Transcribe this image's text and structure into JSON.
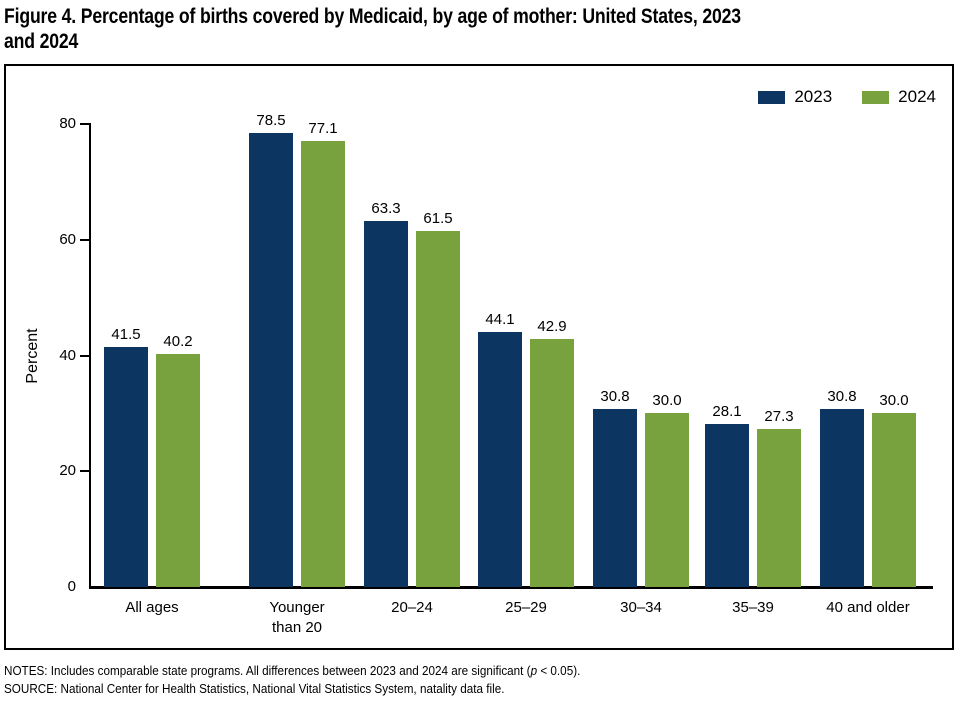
{
  "header": {
    "title_lines": [
      "Figure 4. Percentage of births covered by Medicaid, by age of mother: United States, 2023",
      "and 2024"
    ]
  },
  "chart_data": {
    "type": "bar",
    "title": "Figure 4. Percentage of births covered by Medicaid, by age of mother: United States, 2023 and 2024",
    "xlabel": "",
    "ylabel": "Percent",
    "ylim": [
      0,
      80
    ],
    "yticks": [
      0,
      20,
      40,
      60,
      80
    ],
    "grid": false,
    "legend_position": "top-right",
    "value_labels_shown": true,
    "categories": [
      "All ages",
      "Younger than 20",
      "20–24",
      "25–29",
      "30–34",
      "35–39",
      "40 and older"
    ],
    "series": [
      {
        "name": "2023",
        "color": "#0d3561",
        "values": [
          41.5,
          78.5,
          63.3,
          44.1,
          30.8,
          28.1,
          30.8
        ]
      },
      {
        "name": "2024",
        "color": "#78a23d",
        "values": [
          40.2,
          77.1,
          61.5,
          42.9,
          30.0,
          27.3,
          30.0
        ]
      }
    ],
    "axis_color": "#000000",
    "text_color": "#000000"
  },
  "footer": {
    "notes_prefix": "NOTES: Includes comparable state programs. All differences between 2023 and 2024 are significant (",
    "notes_p": "p",
    "notes_suffix": " < 0.05).",
    "source": "SOURCE: National Center for Health Statistics, National Vital Statistics System, natality data file."
  }
}
